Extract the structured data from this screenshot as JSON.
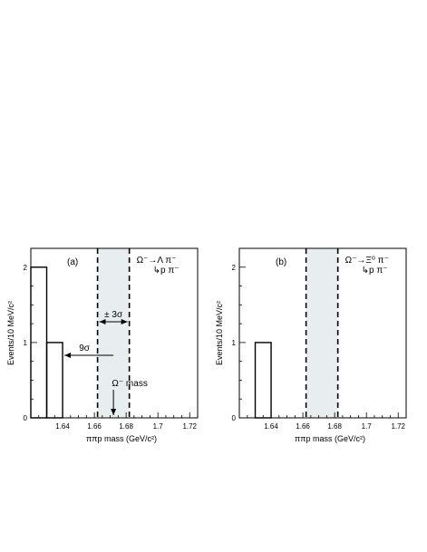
{
  "chart_data": [
    {
      "type": "histogram",
      "panel_label": "(a)",
      "xlabel": "ππp mass (GeV/c²)",
      "ylabel": "Events/10 MeV/c²",
      "xlim": [
        1.62,
        1.725
      ],
      "ylim": [
        0,
        2.25
      ],
      "x_ticks": [
        "1.64",
        "1.66",
        "1.68",
        "1.7",
        "1.72"
      ],
      "x_tick_values": [
        1.64,
        1.66,
        1.68,
        1.7,
        1.72
      ],
      "y_ticks": [
        "0",
        "1",
        "2"
      ],
      "y_tick_values": [
        0,
        1,
        2
      ],
      "bins": [
        {
          "x0": 1.62,
          "x1": 1.63,
          "value": 2
        },
        {
          "x0": 1.63,
          "x1": 1.64,
          "value": 1
        }
      ],
      "signal_window": [
        1.662,
        1.682
      ],
      "reaction_line1": "Ω⁻→Λ π⁻",
      "reaction_line2": "↳p π⁻",
      "annotation_window": "± 3σ",
      "annotation_distance": "9σ",
      "annotation_mass": "Ω⁻ mass",
      "omega_mass": 1.672
    },
    {
      "type": "histogram",
      "panel_label": "(b)",
      "xlabel": "ππp mass (GeV/c²)",
      "ylabel": "Events/10 MeV/c²",
      "xlim": [
        1.62,
        1.725
      ],
      "ylim": [
        0,
        2.25
      ],
      "x_ticks": [
        "1.64",
        "1.66",
        "1.68",
        "1.7",
        "1.72"
      ],
      "x_tick_values": [
        1.64,
        1.66,
        1.68,
        1.7,
        1.72
      ],
      "y_ticks": [
        "0",
        "1",
        "2"
      ],
      "y_tick_values": [
        0,
        1,
        2
      ],
      "bins": [
        {
          "x0": 1.63,
          "x1": 1.64,
          "value": 1
        }
      ],
      "signal_window": [
        1.662,
        1.682
      ],
      "reaction_line1": "Ω⁻→Ξ⁰ π⁻",
      "reaction_line2": "↳p π⁻"
    }
  ],
  "colors": {
    "band": "#e8eef0",
    "axis": "#000000"
  }
}
